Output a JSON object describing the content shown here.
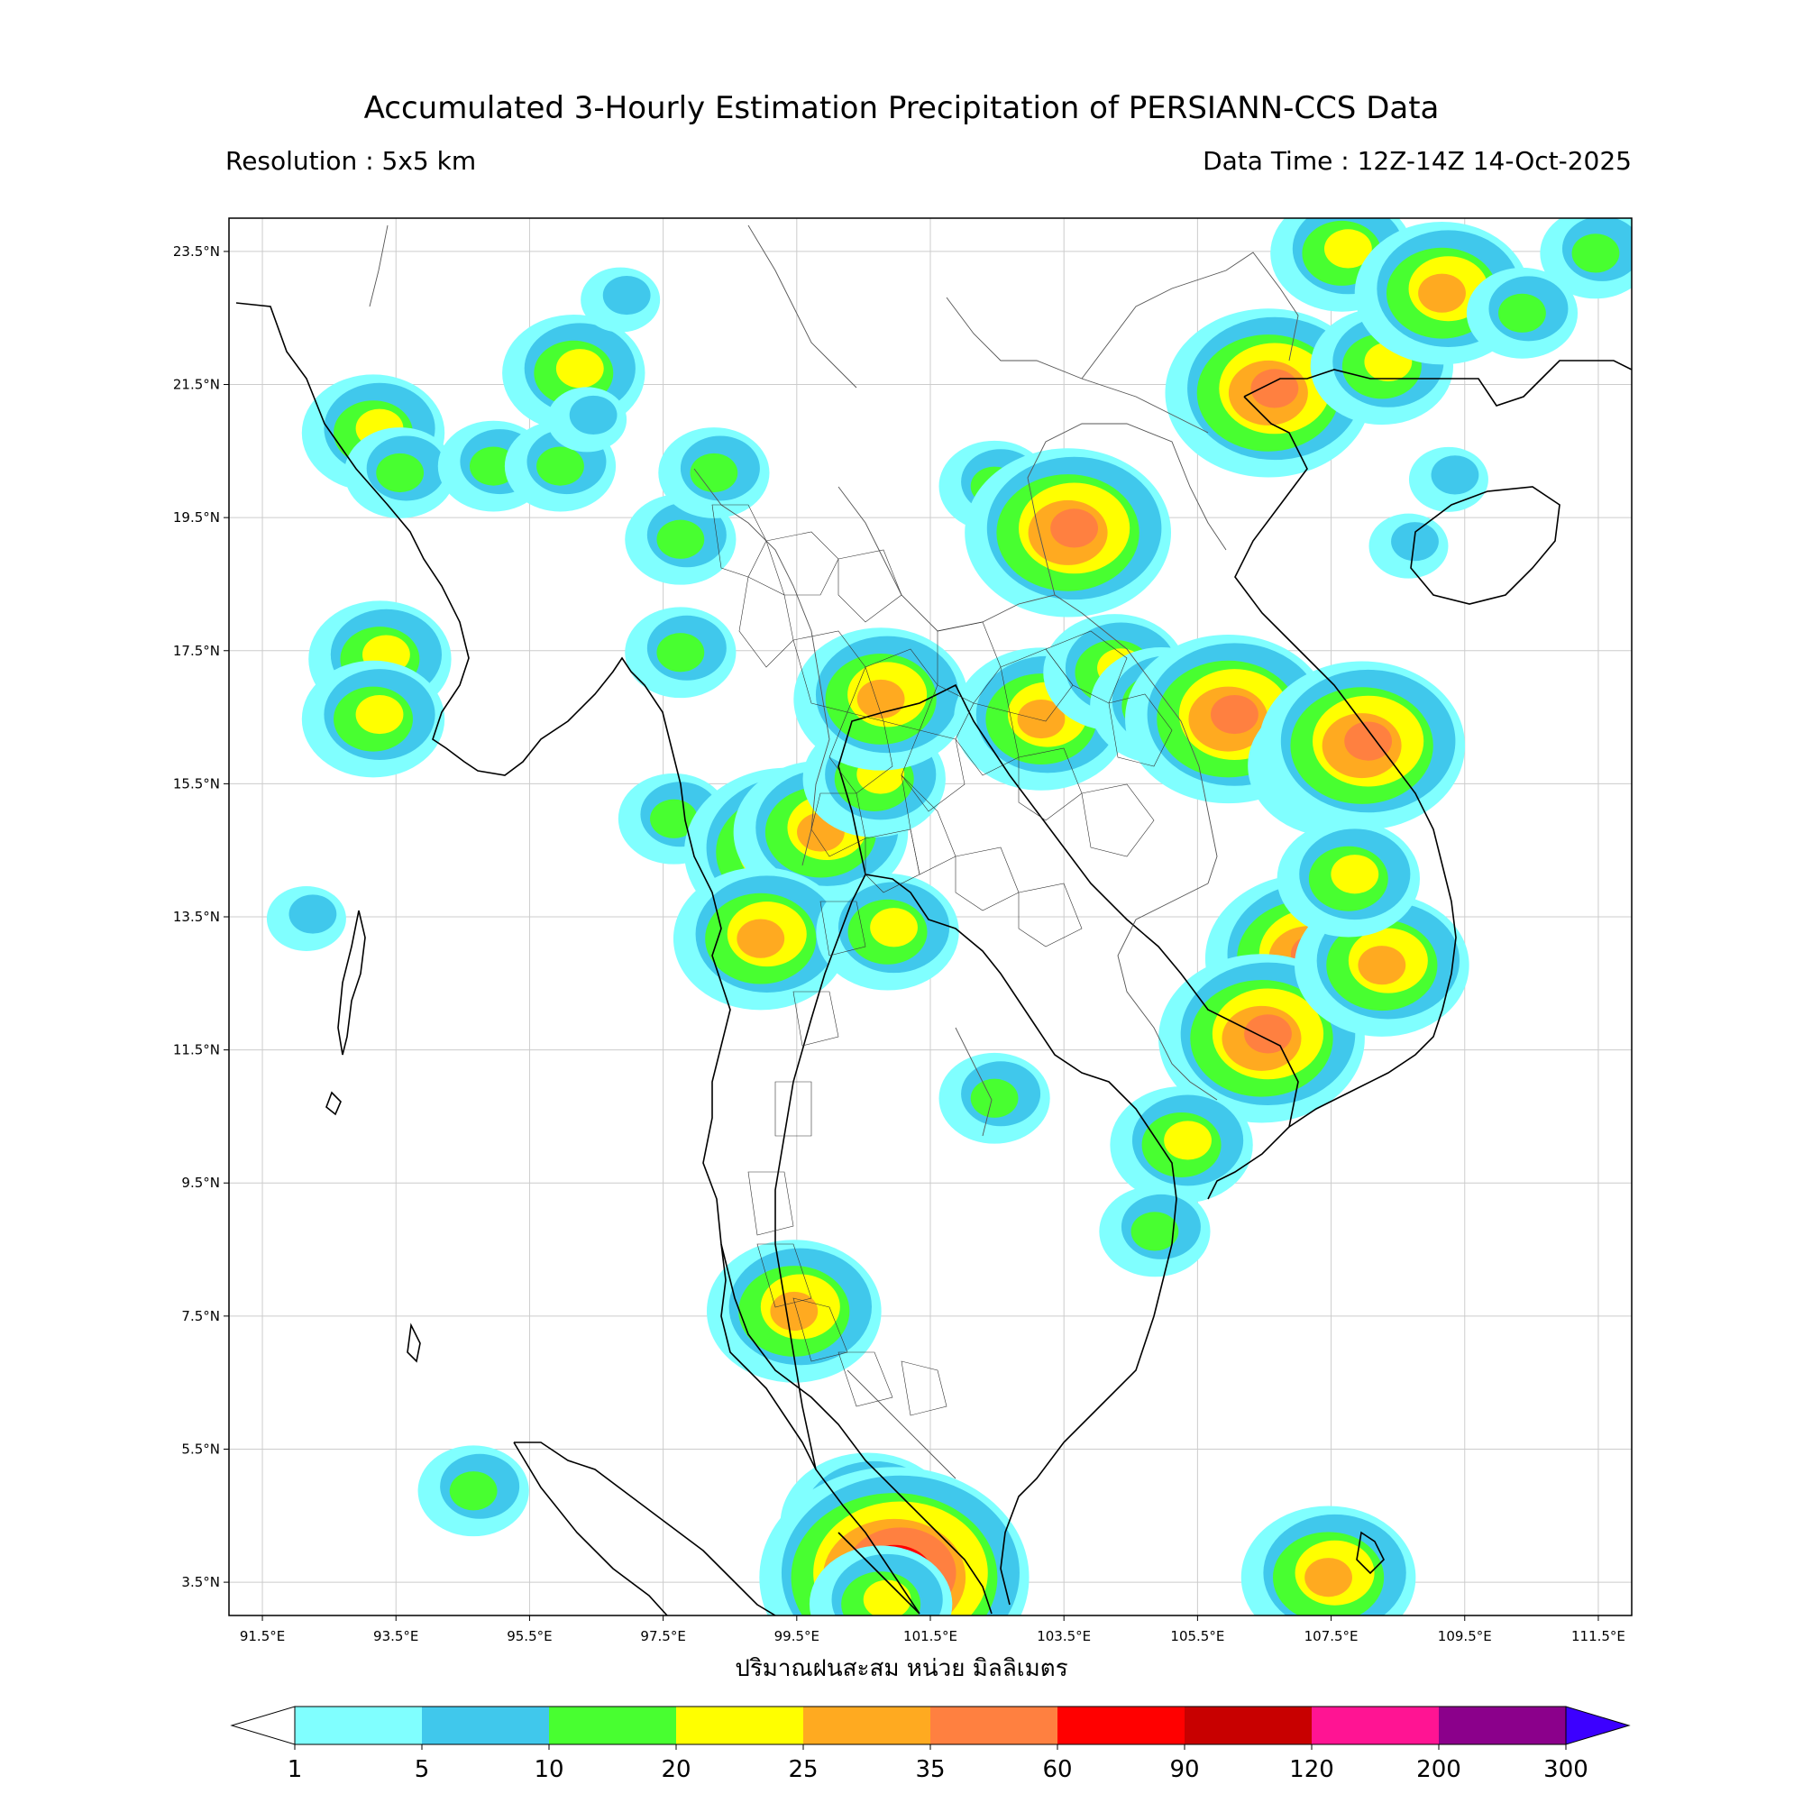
{
  "header": {
    "title": "Accumulated 3-Hourly Estimation Precipitation of PERSIANN-CCS Data",
    "resolution": "Resolution : 5x5 km",
    "data_time": "Data Time : 12Z-14Z 14-Oct-2025"
  },
  "map": {
    "lon_range": [
      91.0,
      112.0
    ],
    "lat_range": [
      3.0,
      24.0
    ],
    "lon_ticks": [
      "91.5°E",
      "93.5°E",
      "95.5°E",
      "97.5°E",
      "99.5°E",
      "101.5°E",
      "103.5°E",
      "105.5°E",
      "107.5°E",
      "109.5°E",
      "111.5°E"
    ],
    "lat_ticks": [
      "23.5°N",
      "21.5°N",
      "19.5°N",
      "17.5°N",
      "15.5°N",
      "13.5°N",
      "11.5°N",
      "9.5°N",
      "7.5°N",
      "5.5°N",
      "3.5°N"
    ],
    "unit_label": "ปริมาณฝนสะสม หน่วย มิลลิเมตร",
    "rain_cells": [
      {
        "lon": 93.2,
        "lat": 20.8,
        "level": 3
      },
      {
        "lon": 93.6,
        "lat": 20.2,
        "level": 2
      },
      {
        "lon": 96.2,
        "lat": 21.7,
        "level": 3
      },
      {
        "lon": 95.0,
        "lat": 20.3,
        "level": 2
      },
      {
        "lon": 96.0,
        "lat": 20.3,
        "level": 2
      },
      {
        "lon": 97.8,
        "lat": 19.2,
        "level": 2
      },
      {
        "lon": 93.3,
        "lat": 17.4,
        "level": 3
      },
      {
        "lon": 93.2,
        "lat": 16.5,
        "level": 3
      },
      {
        "lon": 97.8,
        "lat": 17.5,
        "level": 2
      },
      {
        "lon": 97.7,
        "lat": 15.0,
        "level": 2
      },
      {
        "lon": 99.4,
        "lat": 14.5,
        "level": 5
      },
      {
        "lon": 99.9,
        "lat": 14.8,
        "level": 4
      },
      {
        "lon": 100.7,
        "lat": 15.6,
        "level": 3
      },
      {
        "lon": 100.8,
        "lat": 16.8,
        "level": 4
      },
      {
        "lon": 99.0,
        "lat": 13.2,
        "level": 4
      },
      {
        "lon": 100.9,
        "lat": 13.3,
        "level": 3
      },
      {
        "lon": 102.5,
        "lat": 20.0,
        "level": 2
      },
      {
        "lon": 103.6,
        "lat": 19.3,
        "level": 5
      },
      {
        "lon": 103.2,
        "lat": 16.5,
        "level": 4
      },
      {
        "lon": 104.3,
        "lat": 17.2,
        "level": 3
      },
      {
        "lon": 105.0,
        "lat": 16.7,
        "level": 3
      },
      {
        "lon": 106.0,
        "lat": 16.5,
        "level": 5
      },
      {
        "lon": 107.6,
        "lat": 15.8,
        "level": 4
      },
      {
        "lon": 108.0,
        "lat": 16.1,
        "level": 5
      },
      {
        "lon": 107.2,
        "lat": 12.9,
        "level": 5
      },
      {
        "lon": 106.5,
        "lat": 11.7,
        "level": 5
      },
      {
        "lon": 108.3,
        "lat": 12.8,
        "level": 4
      },
      {
        "lon": 107.8,
        "lat": 14.1,
        "level": 3
      },
      {
        "lon": 105.3,
        "lat": 10.1,
        "level": 3
      },
      {
        "lon": 104.9,
        "lat": 8.8,
        "level": 2
      },
      {
        "lon": 99.5,
        "lat": 7.6,
        "level": 4
      },
      {
        "lon": 94.7,
        "lat": 4.9,
        "level": 2
      },
      {
        "lon": 100.6,
        "lat": 4.4,
        "level": 4
      },
      {
        "lon": 101.0,
        "lat": 3.6,
        "level": 7
      },
      {
        "lon": 100.8,
        "lat": 3.2,
        "level": 3
      },
      {
        "lon": 106.6,
        "lat": 21.4,
        "level": 5
      },
      {
        "lon": 108.3,
        "lat": 21.8,
        "level": 3
      },
      {
        "lon": 107.7,
        "lat": 23.5,
        "level": 3
      },
      {
        "lon": 109.2,
        "lat": 22.9,
        "level": 4
      },
      {
        "lon": 110.4,
        "lat": 22.6,
        "level": 2
      },
      {
        "lon": 108.7,
        "lat": 19.1,
        "level": 1
      },
      {
        "lon": 109.3,
        "lat": 20.1,
        "level": 1
      },
      {
        "lon": 107.5,
        "lat": 3.6,
        "level": 4
      },
      {
        "lon": 111.5,
        "lat": 23.5,
        "level": 2
      },
      {
        "lon": 92.2,
        "lat": 13.5,
        "level": 1
      },
      {
        "lon": 96.4,
        "lat": 21.0,
        "level": 1
      },
      {
        "lon": 98.3,
        "lat": 20.2,
        "level": 2
      },
      {
        "lon": 96.9,
        "lat": 22.8,
        "level": 1
      },
      {
        "lon": 102.5,
        "lat": 10.8,
        "level": 2
      }
    ]
  },
  "colorbar": {
    "colors": [
      "#80ffff",
      "#40c8ec",
      "#48ff30",
      "#ffff00",
      "#ffaa20",
      "#ff8040",
      "#ff0000",
      "#c80000",
      "#ff1493",
      "#8b008b"
    ],
    "under_color": "#ffffff",
    "over_color": "#3c00ff",
    "labels": [
      "1",
      "5",
      "10",
      "20",
      "25",
      "35",
      "60",
      "90",
      "120",
      "200",
      "300"
    ]
  }
}
